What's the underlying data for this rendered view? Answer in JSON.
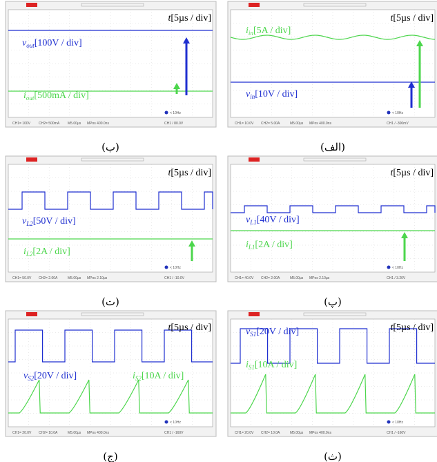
{
  "panels": [
    {
      "caption": "(ب)",
      "time": {
        "var": "t",
        "scale": "[5µs / div]"
      },
      "labels": [
        {
          "var": "v",
          "sub": "out",
          "scale": "[100V / div]"
        },
        {
          "var": "i",
          "sub": "out",
          "scale": "[500mA / div]"
        }
      ],
      "status": [
        "CH1= 100V",
        "CH2= 500mA",
        "M5.00µs",
        "MPos 400.0ns",
        "CH1 / 80.0V"
      ],
      "trigger": "< 10Hz"
    },
    {
      "caption": "(الف)",
      "time": {
        "var": "t",
        "scale": "[5µs / div]"
      },
      "labels": [
        {
          "var": "i",
          "sub": "in",
          "scale": "[5A / div]"
        },
        {
          "var": "v",
          "sub": "in",
          "scale": "[10V / div]"
        }
      ],
      "status": [
        "CH1= 10.0V",
        "CH2= 5.00A",
        "M5.00µs",
        "MPos 400.0ns",
        "CH1 / -300mV"
      ],
      "trigger": "< 10Hz"
    },
    {
      "caption": "(ت)",
      "time": {
        "var": "t",
        "scale": "[5µs / div]"
      },
      "labels": [
        {
          "var": "v",
          "sub": "L2",
          "scale": "[50V / div]"
        },
        {
          "var": "i",
          "sub": "L2",
          "scale": "[2A / div]"
        }
      ],
      "status": [
        "CH1= 50.0V",
        "CH2= 2.00A",
        "M5.00µs",
        "MPos 2.10µs",
        "CH1 / -10.0V"
      ],
      "trigger": "< 10Hz"
    },
    {
      "caption": "(پ)",
      "time": {
        "var": "t",
        "scale": "[5µs / div]"
      },
      "labels": [
        {
          "var": "v",
          "sub": "L1",
          "scale": "[40V / div]"
        },
        {
          "var": "i",
          "sub": "L1",
          "scale": "[2A / div]"
        }
      ],
      "status": [
        "CH1= 40.0V",
        "CH2= 2.00A",
        "M5.00µs",
        "MPos 2.10µs",
        "CH1 / 3.20V"
      ],
      "trigger": "< 10Hz"
    },
    {
      "caption": "(ج)",
      "time": {
        "var": "t",
        "scale": "[5µs / div]"
      },
      "labels": [
        {
          "var": "v",
          "sub": "S2",
          "scale": "[20V / div]"
        },
        {
          "var": "i",
          "sub": "S2",
          "scale": "[10A / div]"
        }
      ],
      "status": [
        "CH1= 20.0V",
        "CH2= 10.0A",
        "M5.00µs",
        "MPos 400.0ns",
        "CH1 / -160V"
      ],
      "trigger": "< 10Hz"
    },
    {
      "caption": "(ث)",
      "time": {
        "var": "t",
        "scale": "[5µs / div]"
      },
      "labels": [
        {
          "var": "v",
          "sub": "S1",
          "scale": "[20V / div]"
        },
        {
          "var": "i",
          "sub": "S1",
          "scale": "[10A / div]"
        }
      ],
      "status": [
        "CH1= 20.0V",
        "CH2= 10.0A",
        "M5.00µs",
        "MPos 400.0ns",
        "CH1 / -160V"
      ],
      "trigger": "< 10Hz"
    }
  ]
}
